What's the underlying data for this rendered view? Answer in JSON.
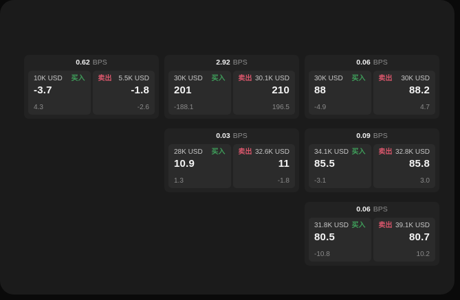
{
  "labels": {
    "buy": "买入",
    "sell": "卖出",
    "bps_unit": "BPS"
  },
  "colors": {
    "page_background": "#0a0a0a",
    "panel_background": "#1b1b1b",
    "card_background": "#222222",
    "tile_background": "#2b2b2b",
    "buy_green": "#3f9e5a",
    "sell_red": "#d8566b"
  },
  "cards": [
    {
      "row": 1,
      "col": 1,
      "bps": "0.62",
      "buy": {
        "size": "10K USD",
        "price": "-3.7",
        "delta": "4.3"
      },
      "sell": {
        "size": "5.5K USD",
        "price": "-1.8",
        "delta": "-2.6"
      }
    },
    {
      "row": 1,
      "col": 2,
      "bps": "2.92",
      "buy": {
        "size": "30K USD",
        "price": "201",
        "delta": "-188.1"
      },
      "sell": {
        "size": "30.1K USD",
        "price": "210",
        "delta": "196.5"
      }
    },
    {
      "row": 1,
      "col": 3,
      "bps": "0.06",
      "buy": {
        "size": "30K USD",
        "price": "88",
        "delta": "-4.9"
      },
      "sell": {
        "size": "30K USD",
        "price": "88.2",
        "delta": "4.7"
      }
    },
    {
      "row": 2,
      "col": 2,
      "bps": "0.03",
      "buy": {
        "size": "28K USD",
        "price": "10.9",
        "delta": "1.3"
      },
      "sell": {
        "size": "32.6K USD",
        "price": "11",
        "delta": "-1.8"
      }
    },
    {
      "row": 2,
      "col": 3,
      "bps": "0.09",
      "buy": {
        "size": "34.1K USD",
        "price": "85.5",
        "delta": "-3.1"
      },
      "sell": {
        "size": "32.8K USD",
        "price": "85.8",
        "delta": "3.0"
      }
    },
    {
      "row": 3,
      "col": 3,
      "bps": "0.06",
      "buy": {
        "size": "31.8K USD",
        "price": "80.5",
        "delta": "-10.8"
      },
      "sell": {
        "size": "39.1K USD",
        "price": "80.7",
        "delta": "10.2"
      }
    }
  ]
}
